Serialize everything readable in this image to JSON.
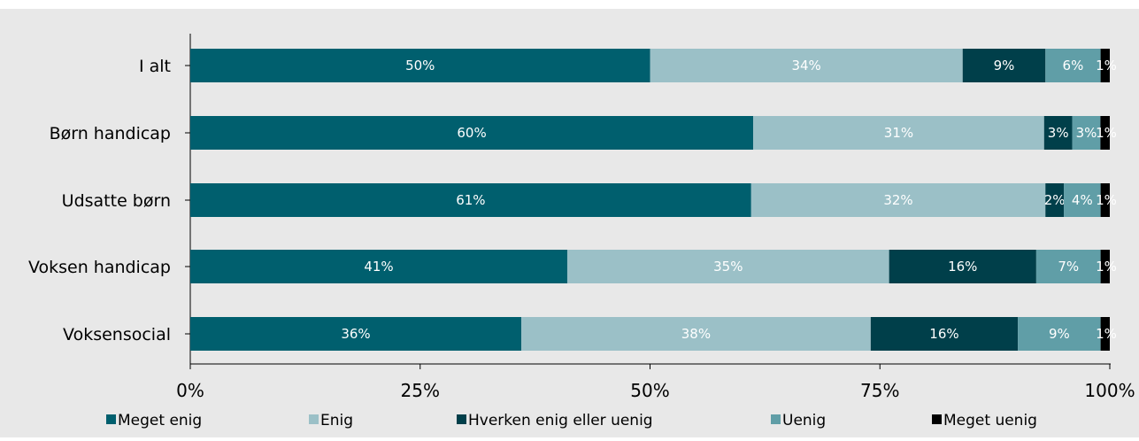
{
  "chart_data": {
    "type": "bar",
    "orientation": "horizontal",
    "stacked": true,
    "categories": [
      "I alt",
      "Børn handicap",
      "Udsatte børn",
      "Voksen handicap",
      "Voksensocial"
    ],
    "series": [
      {
        "name": "Meget enig",
        "color": "#005f6e",
        "values": [
          50,
          60,
          61,
          41,
          36
        ],
        "labels": [
          "50%",
          "60%",
          "61%",
          "41%",
          "36%"
        ]
      },
      {
        "name": "Enig",
        "color": "#9bc0c7",
        "values": [
          34,
          31,
          32,
          35,
          38
        ],
        "labels": [
          "34%",
          "31%",
          "32%",
          "35%",
          "38%"
        ]
      },
      {
        "name": "Hverken enig eller uenig",
        "color": "#003f4a",
        "values": [
          9,
          3,
          2,
          16,
          16
        ],
        "labels": [
          "9%",
          "3%",
          "2%",
          "16%",
          "16%"
        ]
      },
      {
        "name": "Uenig",
        "color": "#609ea7",
        "values": [
          6,
          3,
          4,
          7,
          9
        ],
        "labels": [
          "6%",
          "3%",
          "4%",
          "7%",
          "9%"
        ]
      },
      {
        "name": "Meget uenig",
        "color": "#000000",
        "values": [
          1,
          1,
          1,
          1,
          1
        ],
        "labels": [
          "1%",
          "1%",
          "1%",
          "1%",
          "1%"
        ]
      }
    ],
    "xlim": [
      0,
      100
    ],
    "xticks": [
      "0%",
      "25%",
      "50%",
      "75%",
      "100%"
    ],
    "grid": false,
    "legend_position": "bottom",
    "background_color": "#e8e8e8"
  }
}
